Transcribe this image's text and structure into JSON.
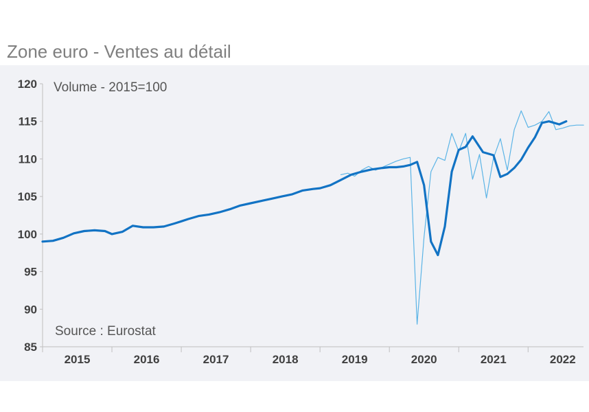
{
  "title": "Zone euro - Ventes au détail",
  "chart_data": {
    "type": "line",
    "title": "Zone euro - Ventes au détail",
    "subtitle": "Volume - 2015=100",
    "source": "Source : Eurostat",
    "xlabel": "",
    "ylabel": "",
    "ylim": [
      85,
      120
    ],
    "xlim": [
      2015.0,
      2022.7
    ],
    "yticks": [
      "85",
      "90",
      "95",
      "100",
      "105",
      "110",
      "115",
      "120"
    ],
    "xticks": [
      "2015",
      "2016",
      "2017",
      "2018",
      "2019",
      "2020",
      "2021",
      "2022"
    ],
    "grid": false,
    "colors": {
      "smooth": "#1273c4",
      "monthly": "#5bb4e6",
      "panel": "#f1f2f6"
    },
    "series": [
      {
        "kind": "smoothed",
        "x": [
          2015.0,
          2015.15,
          2015.3,
          2015.45,
          2015.6,
          2015.75,
          2015.9,
          2016.0,
          2016.15,
          2016.3,
          2016.45,
          2016.6,
          2016.75,
          2016.9,
          2017.0,
          2017.1,
          2017.25,
          2017.4,
          2017.55,
          2017.7,
          2017.85,
          2018.0,
          2018.15,
          2018.3,
          2018.45,
          2018.6,
          2018.75,
          2018.9,
          2019.0,
          2019.15,
          2019.3,
          2019.45,
          2019.6,
          2019.75,
          2019.9,
          2020.0,
          2020.1,
          2020.2,
          2020.3,
          2020.4,
          2020.5,
          2020.6,
          2020.7,
          2020.8,
          2020.9,
          2021.0,
          2021.1,
          2021.2,
          2021.35,
          2021.5,
          2021.6,
          2021.7,
          2021.8,
          2021.9,
          2022.0,
          2022.1,
          2022.2,
          2022.3,
          2022.45,
          2022.55
        ],
        "y": [
          99.0,
          99.1,
          99.5,
          100.1,
          100.4,
          100.5,
          100.4,
          100.0,
          100.3,
          101.1,
          100.9,
          100.9,
          101.0,
          101.4,
          101.7,
          102.0,
          102.4,
          102.6,
          102.9,
          103.3,
          103.8,
          104.1,
          104.4,
          104.7,
          105.0,
          105.3,
          105.8,
          106.0,
          106.1,
          106.5,
          107.2,
          107.9,
          108.3,
          108.6,
          108.8,
          108.9,
          108.9,
          109.0,
          109.2,
          109.6,
          106.5,
          99.0,
          97.2,
          101.0,
          108.3,
          111.2,
          111.6,
          113.0,
          110.9,
          110.5,
          107.6,
          108.0,
          108.8,
          109.9,
          111.5,
          112.9,
          114.8,
          115.0,
          114.6,
          115.0
        ]
      },
      {
        "kind": "monthly",
        "x": [
          2019.3,
          2019.4,
          2019.5,
          2019.6,
          2019.7,
          2019.8,
          2019.9,
          2020.0,
          2020.1,
          2020.2,
          2020.3,
          2020.4,
          2020.5,
          2020.6,
          2020.7,
          2020.8,
          2020.9,
          2021.0,
          2021.1,
          2021.2,
          2021.3,
          2021.4,
          2021.5,
          2021.6,
          2021.7,
          2021.8,
          2021.9,
          2022.0,
          2022.1,
          2022.2,
          2022.3,
          2022.4,
          2022.5,
          2022.6,
          2022.7,
          2022.8
        ],
        "y": [
          107.9,
          108.1,
          107.7,
          108.5,
          109.0,
          108.5,
          108.9,
          109.3,
          109.7,
          110.0,
          110.2,
          88.0,
          99.6,
          108.3,
          110.2,
          109.8,
          113.4,
          111.0,
          113.4,
          107.3,
          110.6,
          104.8,
          110.1,
          112.7,
          108.5,
          113.9,
          116.4,
          114.2,
          114.5,
          115.0,
          116.3,
          113.9,
          114.1,
          114.4,
          114.5,
          114.5
        ]
      }
    ]
  }
}
